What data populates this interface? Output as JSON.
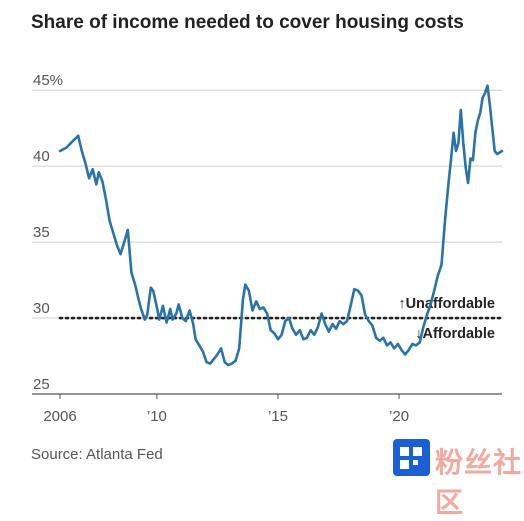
{
  "title": "Share of income needed to cover housing costs",
  "source": "Source: Atlanta Fed",
  "watermark": "粉丝社区",
  "chart_data": {
    "type": "line",
    "title": "Share of income needed to cover housing costs",
    "xlabel": "",
    "ylabel": "",
    "xlim": [
      2006,
      2024.25
    ],
    "ylim": [
      25,
      46
    ],
    "x_ticks": [
      2006,
      2010,
      2015,
      2020
    ],
    "x_tick_labels": [
      "2006",
      "’10",
      "’15",
      "’20"
    ],
    "y_ticks": [
      25,
      30,
      35,
      40,
      45
    ],
    "y_tick_labels": [
      "25",
      "30",
      "35",
      "40",
      "45%"
    ],
    "threshold": {
      "value": 30,
      "style": "dotted",
      "label_above": "↑Unaffordable",
      "label_below": "↓Affordable"
    },
    "grid": "horizontal",
    "line_color": "#2a73a8",
    "series": [
      {
        "x": [
          2006.0,
          2006.25,
          2006.5,
          2006.75,
          2006.9,
          2007.05,
          2007.2,
          2007.35,
          2007.5,
          2007.6,
          2007.75,
          2007.9,
          2008.05,
          2008.2,
          2008.35,
          2008.5,
          2008.65,
          2008.8,
          2008.95,
          2009.1,
          2009.25,
          2009.35,
          2009.5,
          2009.6,
          2009.75,
          2009.85,
          2010.0,
          2010.1,
          2010.25,
          2010.4,
          2010.55,
          2010.65,
          2010.8,
          2010.9,
          2011.05,
          2011.2,
          2011.35,
          2011.5,
          2011.6,
          2011.75,
          2011.9,
          2012.05,
          2012.2,
          2012.35,
          2012.5,
          2012.65,
          2012.8,
          2012.95,
          2013.1,
          2013.25,
          2013.4,
          2013.55,
          2013.65,
          2013.8,
          2013.95,
          2014.1,
          2014.25,
          2014.4,
          2014.55,
          2014.7,
          2014.85,
          2015.0,
          2015.15,
          2015.3,
          2015.45,
          2015.6,
          2015.75,
          2015.9,
          2016.05,
          2016.2,
          2016.35,
          2016.5,
          2016.65,
          2016.8,
          2016.95,
          2017.1,
          2017.25,
          2017.4,
          2017.55,
          2017.7,
          2017.85,
          2018.0,
          2018.15,
          2018.3,
          2018.45,
          2018.6,
          2018.75,
          2018.9,
          2019.05,
          2019.2,
          2019.35,
          2019.5,
          2019.65,
          2019.8,
          2019.95,
          2020.1,
          2020.25,
          2020.4,
          2020.55,
          2020.7,
          2020.85,
          2021.0,
          2021.15,
          2021.3,
          2021.45,
          2021.6,
          2021.75,
          2021.9,
          2022.05,
          2022.15,
          2022.25,
          2022.35,
          2022.45,
          2022.55,
          2022.65,
          2022.75,
          2022.85,
          2022.95,
          2023.05,
          2023.15,
          2023.25,
          2023.35,
          2023.45,
          2023.55,
          2023.65,
          2023.75,
          2023.85,
          2023.95,
          2024.05,
          2024.15,
          2024.25
        ],
        "values": [
          41.0,
          41.2,
          41.6,
          42.0,
          41.0,
          40.2,
          39.2,
          39.8,
          38.8,
          39.6,
          39.0,
          37.8,
          36.4,
          35.6,
          34.8,
          34.2,
          35.0,
          35.8,
          33.0,
          32.2,
          31.2,
          30.6,
          29.9,
          30.2,
          32.0,
          31.8,
          30.7,
          29.9,
          30.8,
          29.7,
          30.6,
          29.9,
          30.3,
          30.9,
          30.0,
          29.8,
          30.5,
          29.6,
          28.6,
          28.2,
          27.8,
          27.1,
          27.0,
          27.3,
          27.6,
          28.0,
          27.1,
          26.9,
          27.0,
          27.2,
          28.0,
          31.2,
          32.2,
          31.8,
          30.5,
          31.1,
          30.6,
          30.7,
          30.3,
          29.2,
          29.0,
          28.6,
          28.9,
          29.8,
          30.0,
          29.3,
          28.9,
          29.2,
          28.6,
          28.7,
          29.2,
          28.9,
          29.4,
          30.3,
          29.6,
          29.1,
          29.6,
          29.3,
          29.8,
          29.6,
          29.8,
          30.8,
          31.9,
          31.8,
          31.5,
          30.2,
          29.8,
          29.5,
          28.7,
          28.5,
          28.7,
          28.2,
          28.4,
          28.0,
          28.3,
          27.9,
          27.6,
          27.9,
          28.3,
          28.2,
          28.4,
          29.4,
          30.2,
          30.9,
          31.8,
          32.8,
          33.5,
          36.5,
          39.0,
          40.5,
          42.2,
          41.0,
          41.5,
          43.7,
          41.6,
          39.9,
          38.9,
          40.5,
          40.4,
          42.2,
          43.0,
          43.5,
          44.5,
          44.8,
          45.3,
          44.0,
          42.5,
          41.0,
          40.8,
          40.9,
          41.0
        ]
      }
    ]
  }
}
